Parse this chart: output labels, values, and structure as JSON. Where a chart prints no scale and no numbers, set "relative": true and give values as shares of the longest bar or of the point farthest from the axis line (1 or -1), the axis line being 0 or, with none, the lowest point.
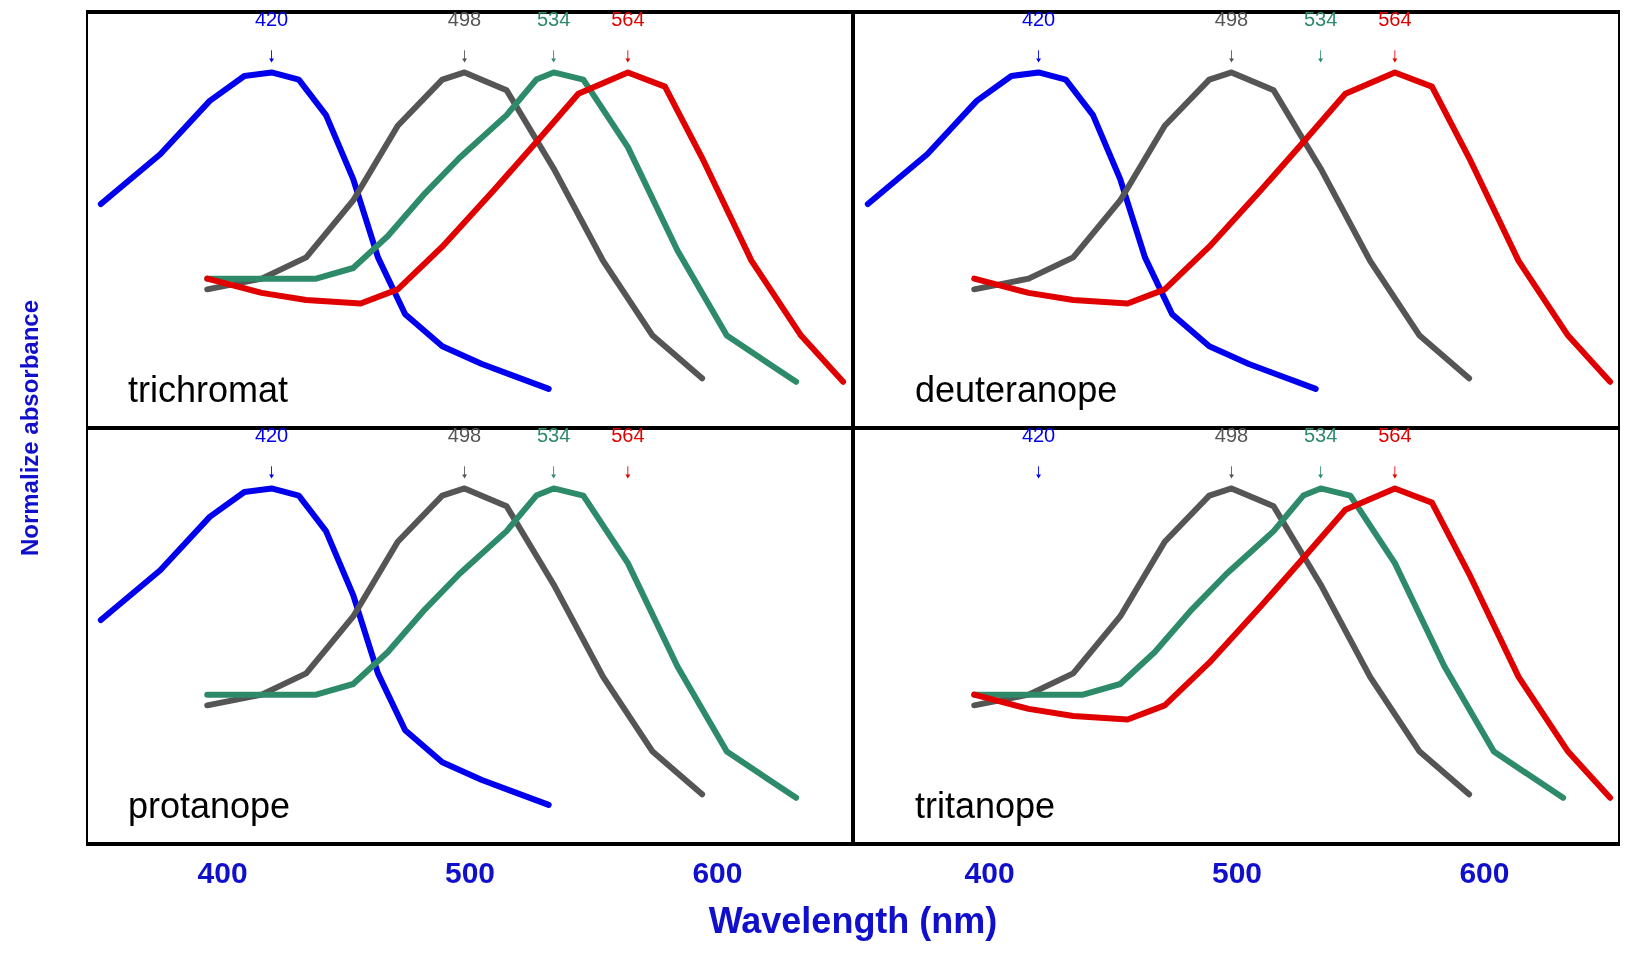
{
  "chart_data": [
    {
      "type": "line",
      "title": "trichromat",
      "ylabel": "Normalize absorbance",
      "relative": true,
      "xlim": [
        345,
        655
      ],
      "xticks": [
        400,
        500,
        600
      ],
      "tick_labels": false,
      "annotations": [
        {
          "text": "420",
          "x": 420,
          "y": 1
        },
        {
          "text": "498",
          "x": 498,
          "y": 1
        },
        {
          "text": "534",
          "x": 534,
          "y": 1
        },
        {
          "text": "564",
          "x": 564,
          "y": 1
        }
      ],
      "series": [
        {
          "color": "#0000ee",
          "x": [
            351,
            375,
            395,
            409,
            420,
            431,
            442,
            453,
            463,
            474,
            489,
            505,
            532
          ],
          "values": [
            0.63,
            0.77,
            0.92,
            0.99,
            1.0,
            0.98,
            0.88,
            0.7,
            0.48,
            0.32,
            0.23,
            0.18,
            0.11
          ]
        },
        {
          "color": "#555555",
          "x": [
            394,
            416,
            434,
            453,
            471,
            489,
            498,
            515,
            534,
            554,
            574,
            594
          ],
          "values": [
            0.39,
            0.42,
            0.48,
            0.64,
            0.85,
            0.98,
            1.0,
            0.95,
            0.73,
            0.47,
            0.26,
            0.14
          ]
        },
        {
          "color": "#2e8b6a",
          "x": [
            394,
            416,
            438,
            453,
            467,
            482,
            496,
            515,
            527,
            534,
            546,
            564,
            584,
            604,
            632
          ],
          "values": [
            0.42,
            0.42,
            0.42,
            0.45,
            0.54,
            0.66,
            0.76,
            0.88,
            0.98,
            1.0,
            0.98,
            0.79,
            0.5,
            0.26,
            0.13
          ]
        },
        {
          "color": "#e00000",
          "x": [
            394,
            416,
            434,
            456,
            471,
            489,
            510,
            529,
            544,
            564,
            579,
            594,
            614,
            634,
            651
          ],
          "values": [
            0.42,
            0.38,
            0.36,
            0.35,
            0.39,
            0.51,
            0.67,
            0.82,
            0.94,
            1.0,
            0.96,
            0.76,
            0.47,
            0.26,
            0.13
          ]
        }
      ]
    },
    {
      "type": "line",
      "title": "deuteranope",
      "relative": true,
      "xlim": [
        345,
        655
      ],
      "xticks": [
        400,
        500,
        600
      ],
      "tick_labels": false,
      "annotations": [
        {
          "text": "420",
          "x": 420,
          "y": 1
        },
        {
          "text": "498",
          "x": 498,
          "y": 1
        },
        "534",
        {
          "text": "564",
          "x": 564,
          "y": 1
        }
      ],
      "series": [
        {
          "color": "#0000ee",
          "x": [
            351,
            375,
            395,
            409,
            420,
            431,
            442,
            453,
            463,
            474,
            489,
            505,
            532
          ],
          "values": [
            0.63,
            0.77,
            0.92,
            0.99,
            1.0,
            0.98,
            0.88,
            0.7,
            0.48,
            0.32,
            0.23,
            0.18,
            0.11
          ]
        },
        {
          "color": "#555555",
          "x": [
            394,
            416,
            434,
            453,
            471,
            489,
            498,
            515,
            534,
            554,
            574,
            594
          ],
          "values": [
            0.39,
            0.42,
            0.48,
            0.64,
            0.85,
            0.98,
            1.0,
            0.95,
            0.73,
            0.47,
            0.26,
            0.14
          ]
        },
        {
          "color": "#2e8b6a"
        },
        {
          "color": "#e00000",
          "x": [
            394,
            416,
            434,
            456,
            471,
            489,
            510,
            529,
            544,
            564,
            579,
            594,
            614,
            634,
            651
          ],
          "values": [
            0.42,
            0.38,
            0.36,
            0.35,
            0.39,
            0.51,
            0.67,
            0.82,
            0.94,
            1.0,
            0.96,
            0.76,
            0.47,
            0.26,
            0.13
          ]
        }
      ]
    },
    {
      "type": "line",
      "title": "protanope",
      "xlabel": "Wavelength (nm)",
      "relative": true,
      "xlim": [
        345,
        655
      ],
      "xticks": [
        400,
        500,
        600
      ],
      "tick_labels": "x",
      "annotations": [
        {
          "text": "420",
          "x": 420,
          "y": 1
        },
        {
          "text": "498",
          "x": 498,
          "y": 1
        },
        {
          "text": "534",
          "x": 534,
          "y": 1
        },
        "564"
      ],
      "series": [
        {
          "color": "#0000ee",
          "x": [
            351,
            375,
            395,
            409,
            420,
            431,
            442,
            453,
            463,
            474,
            489,
            505,
            532
          ],
          "values": [
            0.63,
            0.77,
            0.92,
            0.99,
            1.0,
            0.98,
            0.88,
            0.7,
            0.48,
            0.32,
            0.23,
            0.18,
            0.11
          ]
        },
        {
          "color": "#555555",
          "x": [
            394,
            416,
            434,
            453,
            471,
            489,
            498,
            515,
            534,
            554,
            574,
            594
          ],
          "values": [
            0.39,
            0.42,
            0.48,
            0.64,
            0.85,
            0.98,
            1.0,
            0.95,
            0.73,
            0.47,
            0.26,
            0.14
          ]
        },
        {
          "color": "#2e8b6a",
          "x": [
            394,
            416,
            438,
            453,
            467,
            482,
            496,
            515,
            527,
            534,
            546,
            564,
            584,
            604,
            632
          ],
          "values": [
            0.42,
            0.42,
            0.42,
            0.45,
            0.54,
            0.66,
            0.76,
            0.88,
            0.98,
            1.0,
            0.98,
            0.79,
            0.5,
            0.26,
            0.13
          ]
        },
        {
          "color": "#e00000"
        }
      ]
    },
    {
      "type": "line",
      "title": "tritanope",
      "relative": true,
      "xlim": [
        345,
        655
      ],
      "xticks": [
        400,
        500,
        600
      ],
      "tick_labels": "x",
      "annotations": [
        "420",
        {
          "text": "498",
          "x": 498,
          "y": 1
        },
        {
          "text": "534",
          "x": 534,
          "y": 1
        },
        {
          "text": "564",
          "x": 564,
          "y": 1
        }
      ],
      "series": [
        {
          "color": "#0000ee"
        },
        {
          "color": "#555555",
          "x": [
            394,
            416,
            434,
            453,
            471,
            489,
            498,
            515,
            534,
            554,
            574,
            594
          ],
          "values": [
            0.39,
            0.42,
            0.48,
            0.64,
            0.85,
            0.98,
            1.0,
            0.95,
            0.73,
            0.47,
            0.26,
            0.14
          ]
        },
        {
          "color": "#2e8b6a",
          "x": [
            394,
            416,
            438,
            453,
            467,
            482,
            496,
            515,
            527,
            534,
            546,
            564,
            584,
            604,
            632
          ],
          "values": [
            0.42,
            0.42,
            0.42,
            0.45,
            0.54,
            0.66,
            0.76,
            0.88,
            0.98,
            1.0,
            0.98,
            0.79,
            0.5,
            0.26,
            0.13
          ]
        },
        {
          "color": "#e00000",
          "x": [
            394,
            416,
            434,
            456,
            471,
            489,
            510,
            529,
            544,
            564,
            579,
            594,
            614,
            634,
            651
          ],
          "values": [
            0.42,
            0.38,
            0.36,
            0.35,
            0.39,
            0.51,
            0.67,
            0.82,
            0.94,
            1.0,
            0.96,
            0.76,
            0.47,
            0.26,
            0.13
          ]
        }
      ]
    }
  ]
}
